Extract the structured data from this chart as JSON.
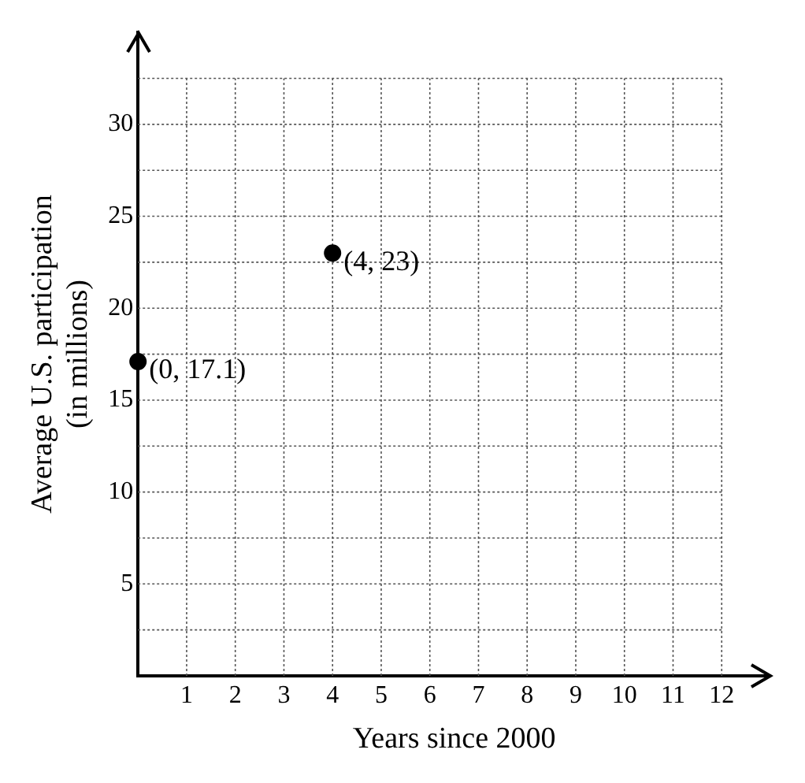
{
  "chart_data": {
    "type": "scatter",
    "xlabel": "Years since 2000",
    "ylabel": "Average U.S. participation\n(in millions)",
    "x": [
      0,
      4
    ],
    "series": [
      {
        "color": "#000000",
        "values": [
          17.1,
          23
        ]
      }
    ],
    "xlim": [
      0,
      13
    ],
    "ylim": [
      0,
      35
    ],
    "xticks": [
      1,
      2,
      3,
      4,
      5,
      6,
      7,
      8,
      9,
      10,
      11,
      12
    ],
    "yticks": [
      {
        "value": 2.5,
        "label": null
      },
      5,
      {
        "value": 7.5,
        "label": null
      },
      10,
      {
        "value": 12.5,
        "label": null
      },
      15,
      {
        "value": 17.5,
        "label": null
      },
      20,
      {
        "value": 22.5,
        "label": null
      },
      25,
      {
        "value": 27.5,
        "label": null
      },
      30,
      {
        "value": 32.5,
        "label": null
      }
    ],
    "grid": true,
    "marker": "circle",
    "legend": false,
    "annotations": [
      {
        "text": "(0, 17.1)",
        "x": 0,
        "y": 17.1
      },
      {
        "text": "(4, 23)",
        "x": 4,
        "y": 23
      }
    ]
  }
}
